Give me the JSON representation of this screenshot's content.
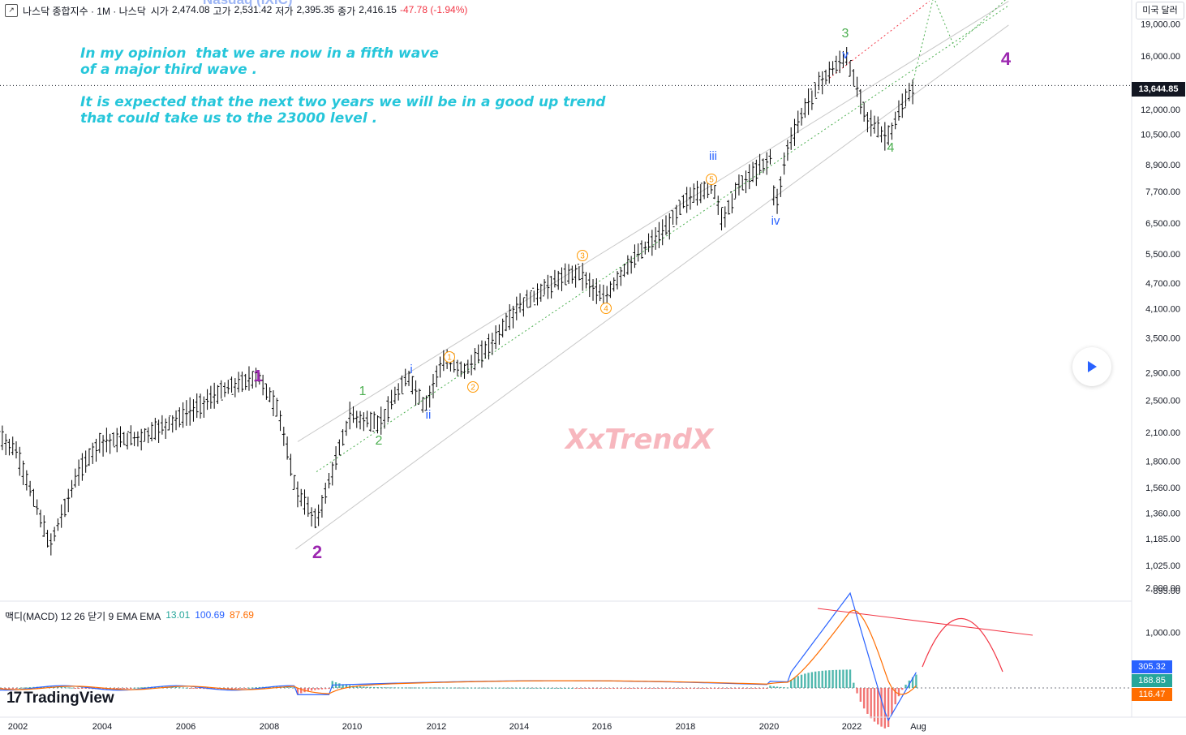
{
  "header": {
    "title": "나스닥 종합지수 · 1M · 나스닥",
    "open_label": "시가",
    "open": "2,474.08",
    "high_label": "고가",
    "high": "2,531.42",
    "low_label": "저가",
    "low": "2,395.35",
    "close_label": "종가",
    "close": "2,416.15",
    "change": "-47.78 (-1.94%)",
    "faded_symbol": "Nasdaq (IXIC)"
  },
  "currency_button": "미국 달러",
  "current_price_badge": "13,644.85",
  "macd_legend": {
    "name": "맥디(MACD) 12 26 닫기 9 EMA EMA",
    "hist": "13.01",
    "macd": "100.69",
    "signal": "87.69"
  },
  "macd_badges": {
    "macd": "305.32",
    "signal": "188.85",
    "hist": "116.47"
  },
  "annotations": {
    "line1": "In my opinion  that we are now in a fifth wave",
    "line2": "of a major third wave .",
    "line3": "It is expected that the next two years we will be in a good up trend",
    "line4": "that could take us to the 23000 level ."
  },
  "watermark": "XxTrendX",
  "logo_text": "TradingView",
  "colors": {
    "accent_cyan": "#26c6da",
    "purple": "#9c27b0",
    "green": "#4caf50",
    "blue": "#2962ff",
    "orange": "#ff9800",
    "red": "#f23645",
    "macd_blue": "#2962ff",
    "signal_orange": "#ff6d00"
  },
  "chart_data": {
    "type": "line",
    "title": "나스닥 종합지수 · 1M · 나스닥",
    "scale": "log",
    "ylim": [
      850,
      20000
    ],
    "y_ticks": [
      "19,000.00",
      "16,000.00",
      "13,644.85",
      "12,000.00",
      "10,500.00",
      "8,900.00",
      "7,700.00",
      "6,500.00",
      "5,500.00",
      "4,700.00",
      "4,100.00",
      "3,500.00",
      "2,900.00",
      "2,500.00",
      "2,100.00",
      "1,800.00",
      "1,560.00",
      "1,360.00",
      "1,185.00",
      "1,025.00",
      "895.00"
    ],
    "x_ticks": [
      "2002",
      "2004",
      "2006",
      "2008",
      "2010",
      "2012",
      "2014",
      "2016",
      "2018",
      "2020",
      "2022",
      "Aug"
    ],
    "series": [
      {
        "x": [
          "2001.5",
          "2002.0",
          "2002.5",
          "2002.8",
          "2003.5",
          "2004.0",
          "2005.0",
          "2006.0",
          "2007.0",
          "2007.8",
          "2008.3",
          "2008.7",
          "2009.2",
          "2010.0",
          "2010.7",
          "2011.4",
          "2011.8",
          "2012.2",
          "2012.8",
          "2013.5",
          "2014.0",
          "2015.0",
          "2015.5",
          "2016.1",
          "2016.5",
          "2017.0",
          "2017.6",
          "2018.0",
          "2018.7",
          "2018.95",
          "2019.3",
          "2019.8",
          "2020.1",
          "2020.2",
          "2020.5",
          "2020.9",
          "2021.3",
          "2021.9",
          "2022.4",
          "2022.8",
          "2022.95",
          "2023.3",
          "2023.55"
        ],
        "y": [
          2100,
          1900,
          1400,
          1140,
          1700,
          2000,
          2050,
          2300,
          2650,
          2850,
          2350,
          1550,
          1300,
          2300,
          2200,
          2850,
          2400,
          3100,
          2950,
          3500,
          4100,
          4800,
          5000,
          4300,
          4950,
          5600,
          6300,
          7300,
          8000,
          6600,
          7900,
          8700,
          9300,
          6900,
          9800,
          12000,
          14000,
          16000,
          11500,
          10400,
          10500,
          12500,
          13600
        ]
      }
    ],
    "macd": {
      "macd": 100.69,
      "signal": 87.69,
      "hist": 13.01
    },
    "waves": [
      {
        "label": "1",
        "x": "2007.8",
        "color": "purple"
      },
      {
        "label": "2",
        "x": "2009.2",
        "color": "purple"
      },
      {
        "label": "1",
        "x": "2010.3",
        "color": "green"
      },
      {
        "label": "2",
        "x": "2010.7",
        "color": "green"
      },
      {
        "label": "i",
        "x": "2011.4",
        "color": "blue"
      },
      {
        "label": "ii",
        "x": "2011.8",
        "color": "blue"
      },
      {
        "label": "1",
        "x": "2012.3",
        "color": "orange"
      },
      {
        "label": "2",
        "x": "2012.9",
        "color": "orange"
      },
      {
        "label": "3",
        "x": "2015.5",
        "color": "orange"
      },
      {
        "label": "4",
        "x": "2016.1",
        "color": "orange"
      },
      {
        "label": "5",
        "x": "2018.6",
        "color": "orange"
      },
      {
        "label": "iii",
        "x": "2018.7",
        "color": "blue"
      },
      {
        "label": "iv",
        "x": "2020.2",
        "color": "blue"
      },
      {
        "label": "v",
        "x": "2021.8",
        "color": "blue"
      },
      {
        "label": "3",
        "x": "2021.8",
        "color": "green"
      },
      {
        "label": "4",
        "x": "2022.9",
        "color": "green"
      },
      {
        "label": "4",
        "x": "2024.0",
        "color": "purple"
      }
    ]
  }
}
